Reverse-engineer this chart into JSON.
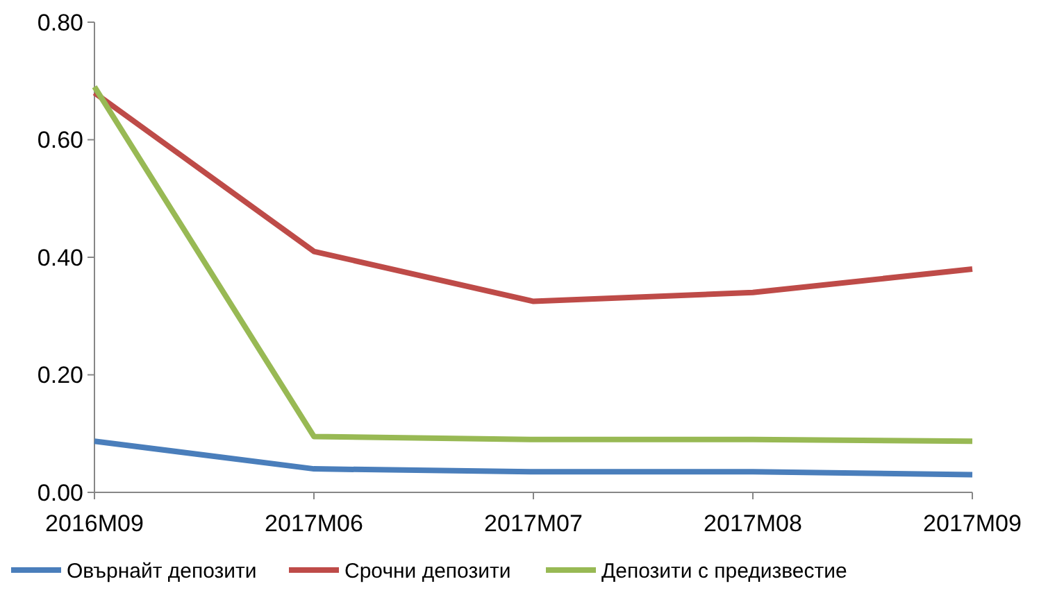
{
  "chart_data": {
    "type": "line",
    "categories": [
      "2016M09",
      "2017M06",
      "2017M07",
      "2017M08",
      "2017M09"
    ],
    "series": [
      {
        "name": "Овърнайт депозити",
        "color": "#4a7ebb",
        "values": [
          0.087,
          0.04,
          0.035,
          0.035,
          0.03
        ]
      },
      {
        "name": "Срочни депозити",
        "color": "#be4b48",
        "values": [
          0.68,
          0.41,
          0.325,
          0.34,
          0.38
        ]
      },
      {
        "name": "Депозити с предизвестие",
        "color": "#98b954",
        "values": [
          0.69,
          0.095,
          0.09,
          0.09,
          0.087
        ]
      }
    ],
    "ylim": [
      0,
      0.8
    ],
    "yticks": [
      {
        "value": 0,
        "label": "0.00"
      },
      {
        "value": 0.2,
        "label": "0.20"
      },
      {
        "value": 0.4,
        "label": "0.40"
      },
      {
        "value": 0.6,
        "label": "0.60"
      },
      {
        "value": 0.8,
        "label": "0.80"
      }
    ],
    "legend": "bottom",
    "marker": "none",
    "line_style": "solid",
    "grid": false
  }
}
